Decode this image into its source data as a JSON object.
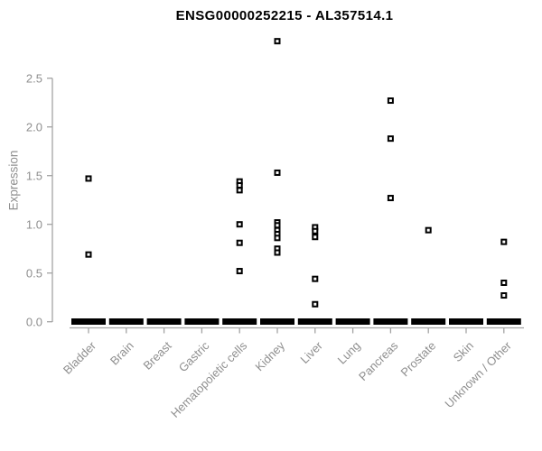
{
  "chart_data": {
    "type": "scatter",
    "title": "ENSG00000252215 - AL357514.1",
    "xlabel": "",
    "ylabel": "Expression",
    "ylim": [
      0,
      2.95
    ],
    "yticks": [
      0,
      0.5,
      1,
      1.5,
      2,
      2.5
    ],
    "ytick_labels": [
      "0.0",
      "0.5",
      "1.0",
      "1.5",
      "2.0",
      "2.5"
    ],
    "grid": false,
    "legend": "none",
    "marker_style": "open-square",
    "categories": [
      "Bladder",
      "Brain",
      "Breast",
      "Gastric",
      "Hematopoietic cells",
      "Kidney",
      "Liver",
      "Lung",
      "Pancreas",
      "Prostate",
      "Skin",
      "Unknown / Other"
    ],
    "series": [
      {
        "category": "Bladder",
        "nonzero_values": [
          1.47,
          0.69
        ],
        "zero_cluster": true
      },
      {
        "category": "Brain",
        "nonzero_values": [],
        "zero_cluster": true
      },
      {
        "category": "Breast",
        "nonzero_values": [],
        "zero_cluster": true
      },
      {
        "category": "Gastric",
        "nonzero_values": [],
        "zero_cluster": true
      },
      {
        "category": "Hematopoietic cells",
        "nonzero_values": [
          1.44,
          1.4,
          1.35,
          1.0,
          0.81,
          0.52
        ],
        "zero_cluster": true
      },
      {
        "category": "Kidney",
        "nonzero_values": [
          2.88,
          1.53,
          1.02,
          0.99,
          0.94,
          0.9,
          0.86,
          0.75,
          0.71
        ],
        "zero_cluster": true
      },
      {
        "category": "Liver",
        "nonzero_values": [
          0.97,
          0.93,
          0.87,
          0.44,
          0.18
        ],
        "zero_cluster": true
      },
      {
        "category": "Lung",
        "nonzero_values": [],
        "zero_cluster": true
      },
      {
        "category": "Pancreas",
        "nonzero_values": [
          2.27,
          1.88,
          1.27
        ],
        "zero_cluster": true
      },
      {
        "category": "Prostate",
        "nonzero_values": [
          0.94
        ],
        "zero_cluster": true
      },
      {
        "category": "Skin",
        "nonzero_values": [],
        "zero_cluster": true
      },
      {
        "category": "Unknown / Other",
        "nonzero_values": [
          0.82,
          0.4,
          0.27
        ],
        "zero_cluster": true
      }
    ],
    "colors": {
      "marker": "#000000",
      "axis_line": "#a3a3a3",
      "tick_label": "#8f8f8f",
      "title": "#000000",
      "background": "#ffffff"
    }
  }
}
